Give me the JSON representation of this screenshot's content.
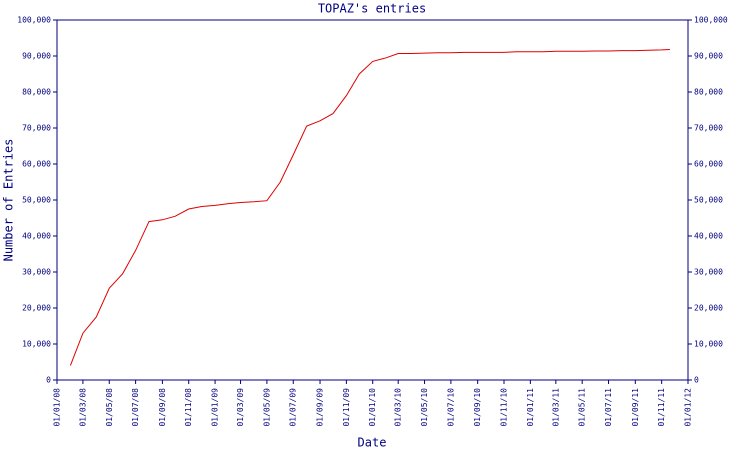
{
  "chart_data": {
    "type": "line",
    "title": "TOPAZ's entries",
    "xlabel": "Date",
    "ylabel": "Number of Entries",
    "x": [
      "2008-02-01",
      "2008-03-01",
      "2008-04-01",
      "2008-05-01",
      "2008-06-01",
      "2008-07-01",
      "2008-08-01",
      "2008-09-01",
      "2008-10-01",
      "2008-11-01",
      "2008-12-01",
      "2009-01-01",
      "2009-02-01",
      "2009-03-01",
      "2009-04-01",
      "2009-05-01",
      "2009-06-01",
      "2009-07-01",
      "2009-08-01",
      "2009-09-01",
      "2009-10-01",
      "2009-11-01",
      "2009-12-01",
      "2010-01-01",
      "2010-02-01",
      "2010-03-01",
      "2010-04-01",
      "2010-05-01",
      "2010-06-01",
      "2010-07-01",
      "2010-08-01",
      "2010-09-01",
      "2010-10-01",
      "2010-11-01",
      "2010-12-01",
      "2011-01-01",
      "2011-02-01",
      "2011-03-01",
      "2011-04-01",
      "2011-05-01",
      "2011-06-01",
      "2011-07-01",
      "2011-08-01",
      "2011-09-01",
      "2011-10-01",
      "2011-11-01",
      "2011-11-20"
    ],
    "series": [
      {
        "name": "TOPAZ",
        "color": "#e00000",
        "values": [
          4000,
          13000,
          17500,
          25500,
          29500,
          36000,
          44000,
          44500,
          45500,
          47500,
          48200,
          48500,
          49000,
          49300,
          49500,
          49800,
          55000,
          62500,
          70500,
          72000,
          74000,
          79000,
          85000,
          88500,
          89500,
          90700,
          90700,
          90800,
          90900,
          90900,
          91000,
          91000,
          91000,
          91000,
          91200,
          91200,
          91200,
          91300,
          91300,
          91300,
          91400,
          91400,
          91500,
          91500,
          91600,
          91700,
          91800
        ]
      }
    ],
    "xlim": [
      "2008-01-01",
      "2012-01-01"
    ],
    "xticks": [
      {
        "value": "2008-01-01",
        "label": "01/01/08"
      },
      {
        "value": "2008-03-01",
        "label": "01/03/08"
      },
      {
        "value": "2008-05-01",
        "label": "01/05/08"
      },
      {
        "value": "2008-07-01",
        "label": "01/07/08"
      },
      {
        "value": "2008-09-01",
        "label": "01/09/08"
      },
      {
        "value": "2008-11-01",
        "label": "01/11/08"
      },
      {
        "value": "2009-01-01",
        "label": "01/01/09"
      },
      {
        "value": "2009-03-01",
        "label": "01/03/09"
      },
      {
        "value": "2009-05-01",
        "label": "01/05/09"
      },
      {
        "value": "2009-07-01",
        "label": "01/07/09"
      },
      {
        "value": "2009-09-01",
        "label": "01/09/09"
      },
      {
        "value": "2009-11-01",
        "label": "01/11/09"
      },
      {
        "value": "2010-01-01",
        "label": "01/01/10"
      },
      {
        "value": "2010-03-01",
        "label": "01/03/10"
      },
      {
        "value": "2010-05-01",
        "label": "01/05/10"
      },
      {
        "value": "2010-07-01",
        "label": "01/07/10"
      },
      {
        "value": "2010-09-01",
        "label": "01/09/10"
      },
      {
        "value": "2010-11-01",
        "label": "01/11/10"
      },
      {
        "value": "2011-01-01",
        "label": "01/01/11"
      },
      {
        "value": "2011-03-01",
        "label": "01/03/11"
      },
      {
        "value": "2011-05-01",
        "label": "01/05/11"
      },
      {
        "value": "2011-07-01",
        "label": "01/07/11"
      },
      {
        "value": "2011-09-01",
        "label": "01/09/11"
      },
      {
        "value": "2011-11-01",
        "label": "01/11/11"
      },
      {
        "value": "2012-01-01",
        "label": "01/01/12"
      }
    ],
    "ylim": [
      0,
      100000
    ],
    "yticks": [
      0,
      {
        "value": 10000,
        "label": "10,000"
      },
      {
        "value": 20000,
        "label": "20,000"
      },
      {
        "value": 30000,
        "label": "30,000"
      },
      {
        "value": 40000,
        "label": "40,000"
      },
      {
        "value": 50000,
        "label": "50,000"
      },
      {
        "value": 60000,
        "label": "60,000"
      },
      {
        "value": 70000,
        "label": "70,000"
      },
      {
        "value": 80000,
        "label": "80,000"
      },
      {
        "value": 90000,
        "label": "90,000"
      },
      {
        "value": 100000,
        "label": "100,000"
      }
    ],
    "y2lim": [
      0,
      100000
    ],
    "y2ticks": [
      0,
      {
        "value": 10000,
        "label": "10,000"
      },
      {
        "value": 20000,
        "label": "20,000"
      },
      {
        "value": 30000,
        "label": "30,000"
      },
      {
        "value": 40000,
        "label": "40,000"
      },
      {
        "value": 50000,
        "label": "50,000"
      },
      {
        "value": 60000,
        "label": "60,000"
      },
      {
        "value": 70000,
        "label": "70,000"
      },
      {
        "value": 80000,
        "label": "80,000"
      },
      {
        "value": 90000,
        "label": "90,000"
      },
      {
        "value": 100000,
        "label": "100,000"
      }
    ]
  }
}
